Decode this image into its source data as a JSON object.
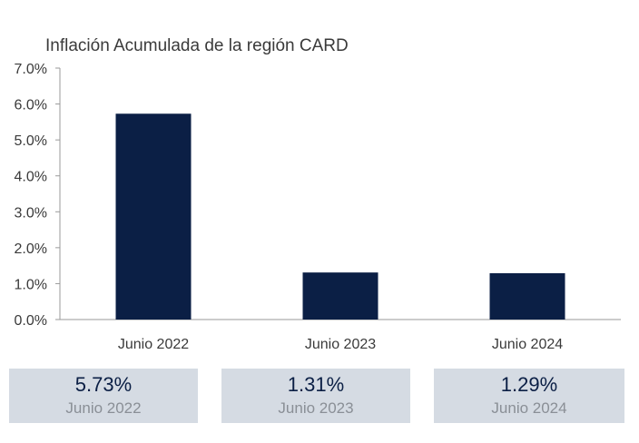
{
  "chart_data": {
    "type": "bar",
    "title": "Inflación Acumulada de la región CARD",
    "xlabel": "",
    "ylabel": "",
    "categories": [
      "Junio 2022",
      "Junio 2023",
      "Junio 2024"
    ],
    "values": [
      5.73,
      1.31,
      1.29
    ],
    "ylim": [
      0,
      7
    ],
    "yticks": [
      0,
      1,
      2,
      3,
      4,
      5,
      6,
      7
    ],
    "ytick_labels": [
      "0.0%",
      "1.0%",
      "2.0%",
      "3.0%",
      "4.0%",
      "5.0%",
      "6.0%",
      "7.0%"
    ],
    "bar_color": "#0b1f45",
    "grid": false,
    "legend": "none"
  },
  "summary_cards": [
    {
      "value": "5.73%",
      "label": "Junio 2022"
    },
    {
      "value": "1.31%",
      "label": "Junio 2023"
    },
    {
      "value": "1.29%",
      "label": "Junio 2024"
    }
  ],
  "colors": {
    "bar": "#0b1f45",
    "card_background": "#d5dbe3",
    "card_value_text": "#0b1f45",
    "card_label_text": "#8a8f96",
    "axis": "#9a9a9a"
  }
}
